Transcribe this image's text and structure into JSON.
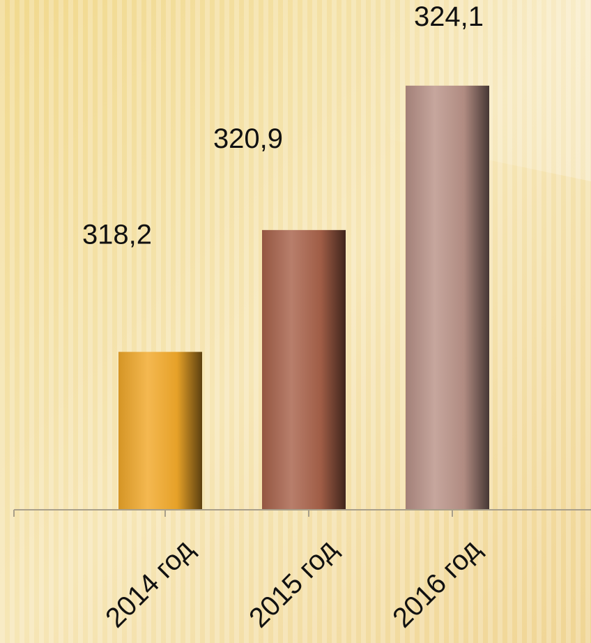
{
  "chart_data": {
    "type": "bar",
    "categories": [
      "2014 год",
      "2015 год",
      "2016 год"
    ],
    "values": [
      318.2,
      320.9,
      324.1
    ],
    "data_labels": [
      "318,2",
      "320,9",
      "324,1"
    ],
    "title": "",
    "xlabel": "",
    "ylabel": "",
    "ylim": [
      314.7,
      326.3
    ],
    "grid": false,
    "legend": "none",
    "colors": {
      "bars": [
        "#f2a92a",
        "#a8624a",
        "#b99288"
      ],
      "background": "#f4dfa4",
      "axis": "#a89f8a",
      "text": "#111111"
    }
  }
}
